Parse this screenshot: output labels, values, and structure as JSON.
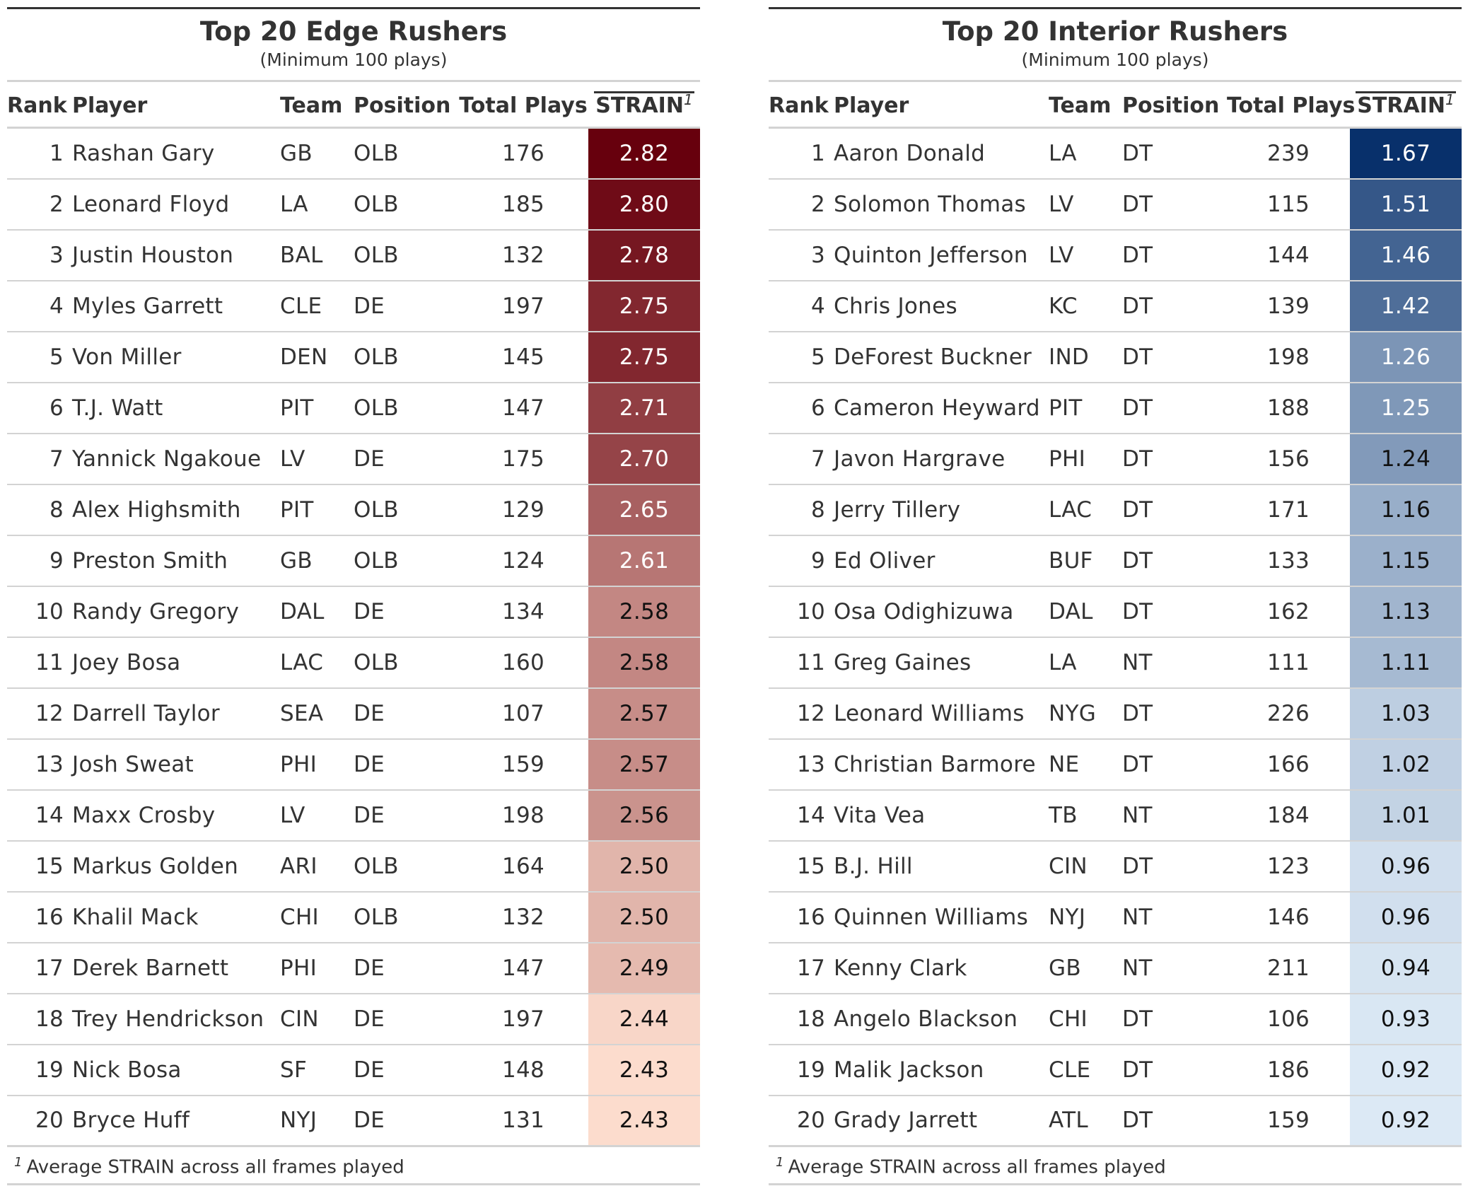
{
  "chart_data": [
    {
      "type": "table",
      "title": "Top 20 Edge Rushers",
      "subtitle": "(Minimum 100 plays)",
      "columns": [
        "Rank",
        "Player",
        "Team",
        "Position",
        "Total Plays",
        "STRAIN"
      ],
      "strain_footnote_mark": "1",
      "footnote": "Average STRAIN across all frames played",
      "color_scale": {
        "low": "#fcdccd",
        "high": "#67000d"
      },
      "rows": [
        {
          "rank": "1",
          "player": "Rashan Gary",
          "team": "GB",
          "position": "OLB",
          "plays": "176",
          "strain": "2.82"
        },
        {
          "rank": "2",
          "player": "Leonard Floyd",
          "team": "LA",
          "position": "OLB",
          "plays": "185",
          "strain": "2.80"
        },
        {
          "rank": "3",
          "player": "Justin Houston",
          "team": "BAL",
          "position": "OLB",
          "plays": "132",
          "strain": "2.78"
        },
        {
          "rank": "4",
          "player": "Myles Garrett",
          "team": "CLE",
          "position": "DE",
          "plays": "197",
          "strain": "2.75"
        },
        {
          "rank": "5",
          "player": "Von Miller",
          "team": "DEN",
          "position": "OLB",
          "plays": "145",
          "strain": "2.75"
        },
        {
          "rank": "6",
          "player": "T.J. Watt",
          "team": "PIT",
          "position": "OLB",
          "plays": "147",
          "strain": "2.71"
        },
        {
          "rank": "7",
          "player": "Yannick Ngakoue",
          "team": "LV",
          "position": "DE",
          "plays": "175",
          "strain": "2.70"
        },
        {
          "rank": "8",
          "player": "Alex Highsmith",
          "team": "PIT",
          "position": "OLB",
          "plays": "129",
          "strain": "2.65"
        },
        {
          "rank": "9",
          "player": "Preston Smith",
          "team": "GB",
          "position": "OLB",
          "plays": "124",
          "strain": "2.61"
        },
        {
          "rank": "10",
          "player": "Randy Gregory",
          "team": "DAL",
          "position": "DE",
          "plays": "134",
          "strain": "2.58"
        },
        {
          "rank": "11",
          "player": "Joey Bosa",
          "team": "LAC",
          "position": "OLB",
          "plays": "160",
          "strain": "2.58"
        },
        {
          "rank": "12",
          "player": "Darrell Taylor",
          "team": "SEA",
          "position": "DE",
          "plays": "107",
          "strain": "2.57"
        },
        {
          "rank": "13",
          "player": "Josh Sweat",
          "team": "PHI",
          "position": "DE",
          "plays": "159",
          "strain": "2.57"
        },
        {
          "rank": "14",
          "player": "Maxx Crosby",
          "team": "LV",
          "position": "DE",
          "plays": "198",
          "strain": "2.56"
        },
        {
          "rank": "15",
          "player": "Markus Golden",
          "team": "ARI",
          "position": "OLB",
          "plays": "164",
          "strain": "2.50"
        },
        {
          "rank": "16",
          "player": "Khalil Mack",
          "team": "CHI",
          "position": "OLB",
          "plays": "132",
          "strain": "2.50"
        },
        {
          "rank": "17",
          "player": "Derek Barnett",
          "team": "PHI",
          "position": "DE",
          "plays": "147",
          "strain": "2.49"
        },
        {
          "rank": "18",
          "player": "Trey Hendrickson",
          "team": "CIN",
          "position": "DE",
          "plays": "197",
          "strain": "2.44"
        },
        {
          "rank": "19",
          "player": "Nick Bosa",
          "team": "SF",
          "position": "DE",
          "plays": "148",
          "strain": "2.43"
        },
        {
          "rank": "20",
          "player": "Bryce Huff",
          "team": "NYJ",
          "position": "DE",
          "plays": "131",
          "strain": "2.43"
        }
      ]
    },
    {
      "type": "table",
      "title": "Top 20 Interior Rushers",
      "subtitle": "(Minimum 100 plays)",
      "columns": [
        "Rank",
        "Player",
        "Team",
        "Position",
        "Total Plays",
        "STRAIN"
      ],
      "strain_footnote_mark": "1",
      "footnote": "Average STRAIN across all frames played",
      "color_scale": {
        "low": "#dce9f5",
        "high": "#08306b"
      },
      "rows": [
        {
          "rank": "1",
          "player": "Aaron Donald",
          "team": "LA",
          "position": "DT",
          "plays": "239",
          "strain": "1.67"
        },
        {
          "rank": "2",
          "player": "Solomon Thomas",
          "team": "LV",
          "position": "DT",
          "plays": "115",
          "strain": "1.51"
        },
        {
          "rank": "3",
          "player": "Quinton Jefferson",
          "team": "LV",
          "position": "DT",
          "plays": "144",
          "strain": "1.46"
        },
        {
          "rank": "4",
          "player": "Chris Jones",
          "team": "KC",
          "position": "DT",
          "plays": "139",
          "strain": "1.42"
        },
        {
          "rank": "5",
          "player": "DeForest Buckner",
          "team": "IND",
          "position": "DT",
          "plays": "198",
          "strain": "1.26"
        },
        {
          "rank": "6",
          "player": "Cameron Heyward",
          "team": "PIT",
          "position": "DT",
          "plays": "188",
          "strain": "1.25"
        },
        {
          "rank": "7",
          "player": "Javon Hargrave",
          "team": "PHI",
          "position": "DT",
          "plays": "156",
          "strain": "1.24"
        },
        {
          "rank": "8",
          "player": "Jerry Tillery",
          "team": "LAC",
          "position": "DT",
          "plays": "171",
          "strain": "1.16"
        },
        {
          "rank": "9",
          "player": "Ed Oliver",
          "team": "BUF",
          "position": "DT",
          "plays": "133",
          "strain": "1.15"
        },
        {
          "rank": "10",
          "player": "Osa Odighizuwa",
          "team": "DAL",
          "position": "DT",
          "plays": "162",
          "strain": "1.13"
        },
        {
          "rank": "11",
          "player": "Greg Gaines",
          "team": "LA",
          "position": "NT",
          "plays": "111",
          "strain": "1.11"
        },
        {
          "rank": "12",
          "player": "Leonard Williams",
          "team": "NYG",
          "position": "DT",
          "plays": "226",
          "strain": "1.03"
        },
        {
          "rank": "13",
          "player": "Christian Barmore",
          "team": "NE",
          "position": "DT",
          "plays": "166",
          "strain": "1.02"
        },
        {
          "rank": "14",
          "player": "Vita Vea",
          "team": "TB",
          "position": "NT",
          "plays": "184",
          "strain": "1.01"
        },
        {
          "rank": "15",
          "player": "B.J. Hill",
          "team": "CIN",
          "position": "DT",
          "plays": "123",
          "strain": "0.96"
        },
        {
          "rank": "16",
          "player": "Quinnen Williams",
          "team": "NYJ",
          "position": "NT",
          "plays": "146",
          "strain": "0.96"
        },
        {
          "rank": "17",
          "player": "Kenny Clark",
          "team": "GB",
          "position": "NT",
          "plays": "211",
          "strain": "0.94"
        },
        {
          "rank": "18",
          "player": "Angelo Blackson",
          "team": "CHI",
          "position": "DT",
          "plays": "106",
          "strain": "0.93"
        },
        {
          "rank": "19",
          "player": "Malik Jackson",
          "team": "CLE",
          "position": "DT",
          "plays": "186",
          "strain": "0.92"
        },
        {
          "rank": "20",
          "player": "Grady Jarrett",
          "team": "ATL",
          "position": "DT",
          "plays": "159",
          "strain": "0.92"
        }
      ]
    }
  ]
}
